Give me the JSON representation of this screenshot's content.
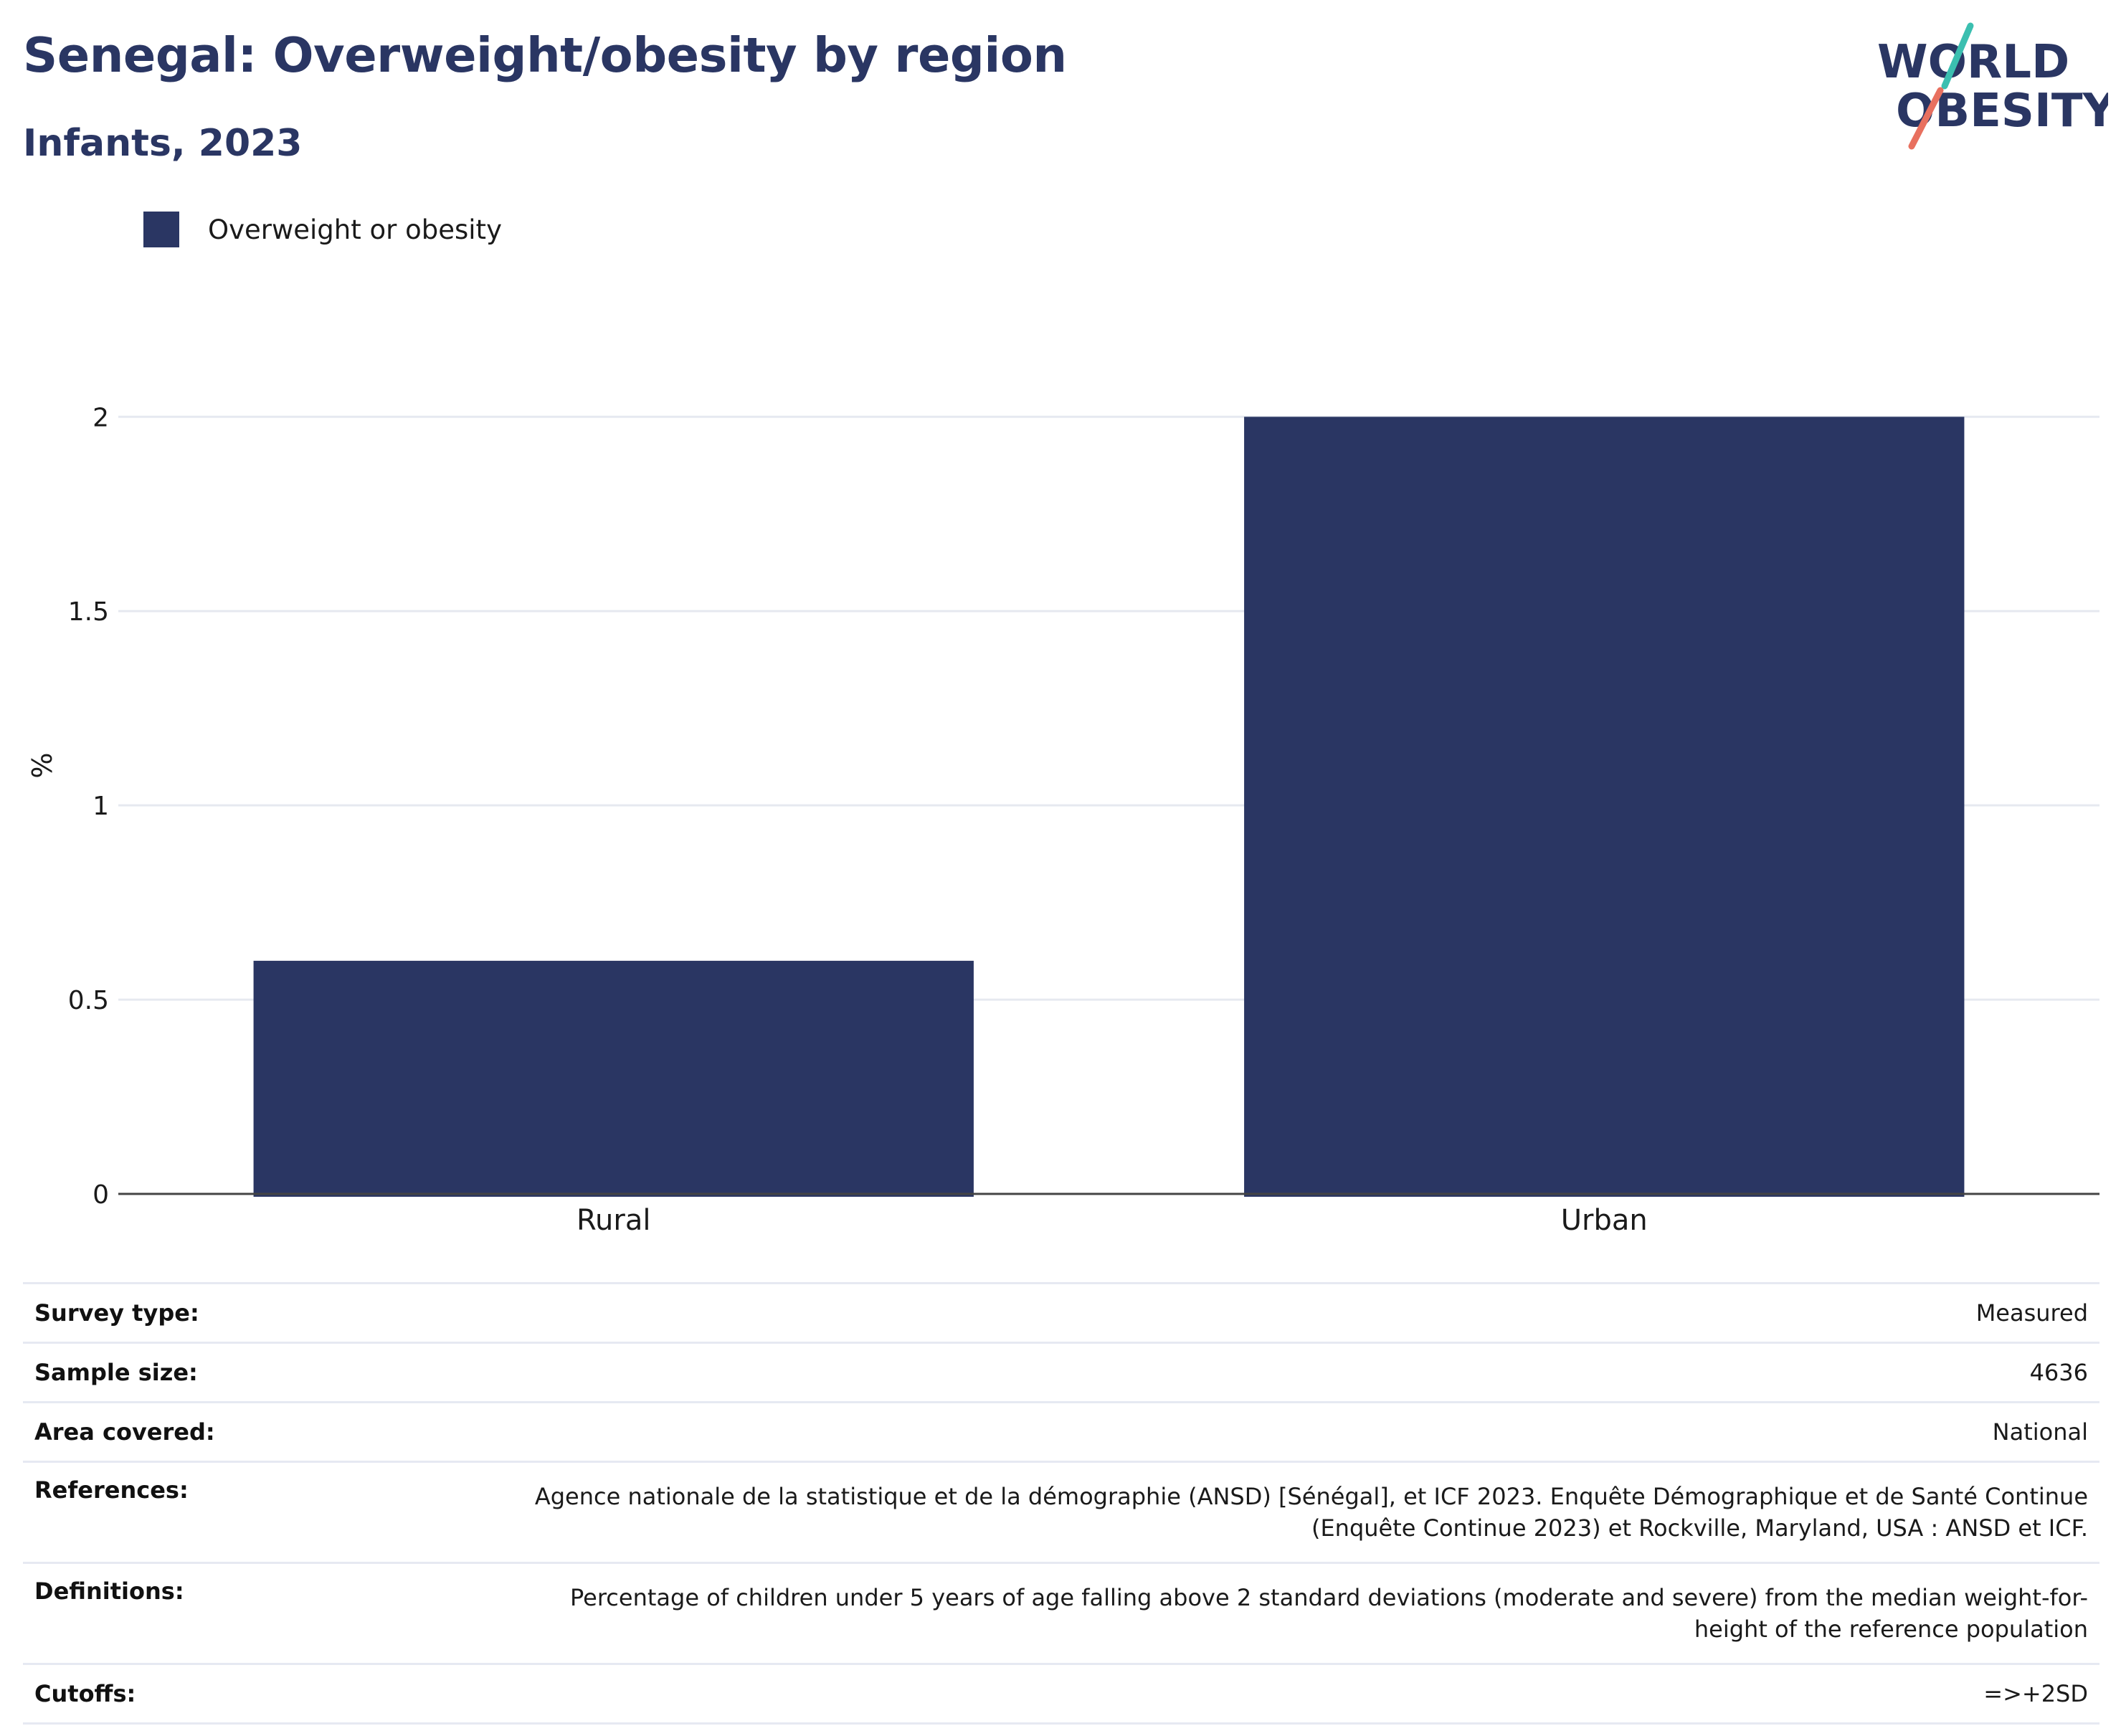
{
  "header": {
    "title": "Senegal: Overweight/obesity by region",
    "subtitle": "Infants, 2023"
  },
  "logo": {
    "line1": "WORLD",
    "line2": "OBESITY",
    "colors": {
      "text": "#2a3663",
      "slash_top": "#3bbfb0",
      "slash_bottom": "#e8705f"
    }
  },
  "legend": {
    "label": "Overweight or obesity",
    "color": "#2a3663"
  },
  "chart_data": {
    "type": "bar",
    "categories": [
      "Rural",
      "Urban"
    ],
    "series": [
      {
        "name": "Overweight or obesity",
        "values": [
          0.6,
          2.0
        ],
        "color": "#2a3663"
      }
    ],
    "title": "Senegal: Overweight/obesity by region",
    "subtitle": "Infants, 2023",
    "xlabel": "",
    "ylabel": "%",
    "ylim": [
      0,
      2.15
    ],
    "yticks": [
      "0",
      "0.5",
      "1",
      "1.5",
      "2"
    ],
    "grid": true,
    "legend_position": "top-left"
  },
  "details": [
    {
      "label": "Survey type:",
      "value": "Measured"
    },
    {
      "label": "Sample size:",
      "value": "4636"
    },
    {
      "label": "Area covered:",
      "value": "National"
    },
    {
      "label": "References:",
      "value": "Agence nationale de la statistique et de la démographie (ANSD) [Sénégal], et ICF 2023. Enquête Démographique et de Santé Continue (Enquête Continue 2023) et Rockville, Maryland, USA : ANSD et ICF."
    },
    {
      "label": "Definitions:",
      "value": "Percentage of children under 5 years of age falling above 2 standard deviations (moderate and severe) from the median weight-for-height of the reference population"
    },
    {
      "label": "Cutoffs:",
      "value": "=>+2SD"
    }
  ]
}
